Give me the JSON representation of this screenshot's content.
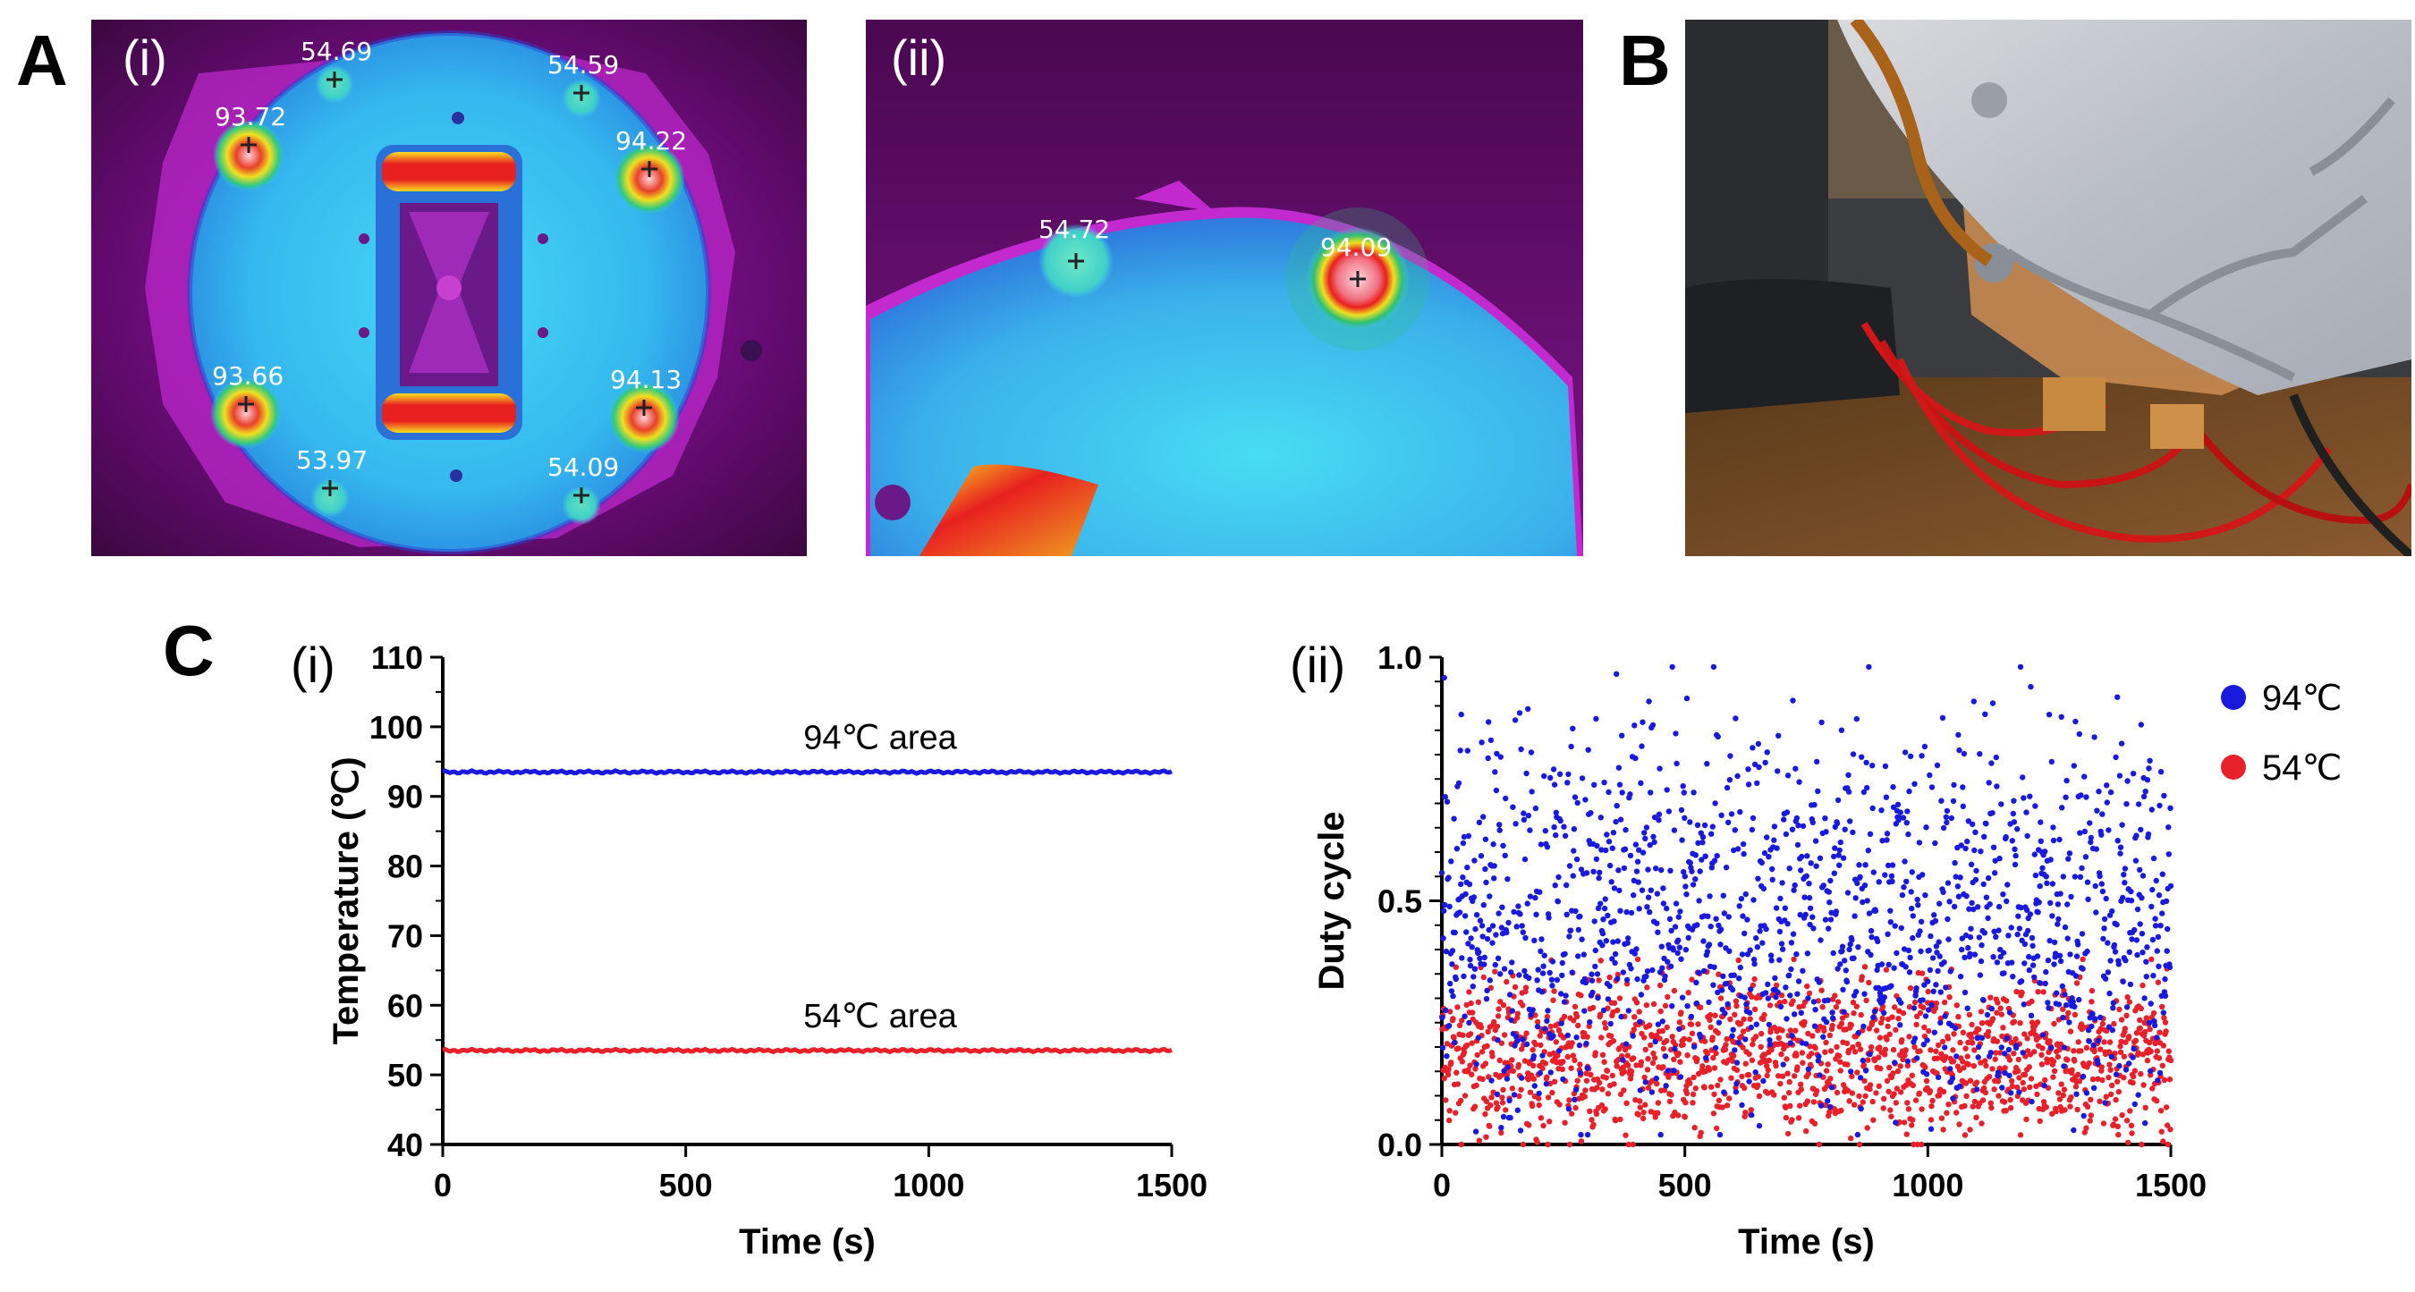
{
  "panels": {
    "A": {
      "letter": "A",
      "i": {
        "label": "(i)",
        "readouts": [
          "54.69",
          "54.59",
          "93.72",
          "94.22",
          "93.66",
          "94.13",
          "53.97",
          "54.09"
        ]
      },
      "ii": {
        "label": "(ii)",
        "readouts": [
          "54.72",
          "94.09"
        ]
      }
    },
    "B": {
      "letter": "B"
    },
    "C": {
      "letter": "C",
      "i_label": "(i)",
      "ii_label": "(ii)"
    }
  },
  "colors": {
    "hot_series": "#1a1adf",
    "cool_series": "#e8202a",
    "thermal_bg": "#4a0a4a",
    "thermal_magenta": "#c21ec9",
    "thermal_cyan": "#3fc8f0"
  },
  "chart_data": [
    {
      "type": "line",
      "panel": "C(i)",
      "title": "",
      "xlabel": "Time (s)",
      "ylabel": "Temperature (℃)",
      "xlim": [
        0,
        1500
      ],
      "ylim": [
        40,
        110
      ],
      "xticks": [
        0,
        500,
        1000,
        1500
      ],
      "yticks": [
        40,
        50,
        60,
        70,
        80,
        90,
        100,
        110
      ],
      "xtick_labels": [
        "0",
        "500",
        "1000",
        "1500"
      ],
      "ytick_labels": [
        "40",
        "50",
        "60",
        "70",
        "80",
        "90",
        "100",
        "110"
      ],
      "series": [
        {
          "name": "94℃ area",
          "label": "94℃ area",
          "color": "#1a1adf",
          "x": [
            0,
            1500
          ],
          "y": [
            93.5,
            93.5
          ]
        },
        {
          "name": "54℃ area",
          "label": "54℃ area",
          "color": "#e8202a",
          "x": [
            0,
            1500
          ],
          "y": [
            53.5,
            53.5
          ]
        }
      ]
    },
    {
      "type": "scatter",
      "panel": "C(ii)",
      "title": "",
      "xlabel": "Time (s)",
      "ylabel": "Duty cycle",
      "xlim": [
        0,
        1500
      ],
      "ylim": [
        0.0,
        1.0
      ],
      "xticks": [
        0,
        500,
        1000,
        1500
      ],
      "yticks": [
        0.0,
        0.5,
        1.0
      ],
      "xtick_labels": [
        "0",
        "500",
        "1000",
        "1500"
      ],
      "ytick_labels": [
        "0.0",
        "0.5",
        "1.0"
      ],
      "legend_position": "top-right",
      "series": [
        {
          "name": "94℃",
          "color": "#1a1adf",
          "points_approx": 1500,
          "mean": 0.47,
          "spread": 0.2,
          "min": 0.02,
          "max": 0.98
        },
        {
          "name": "54℃",
          "color": "#e8202a",
          "points_approx": 1500,
          "mean": 0.18,
          "spread": 0.08,
          "min": 0.0,
          "max": 0.38
        }
      ]
    }
  ]
}
